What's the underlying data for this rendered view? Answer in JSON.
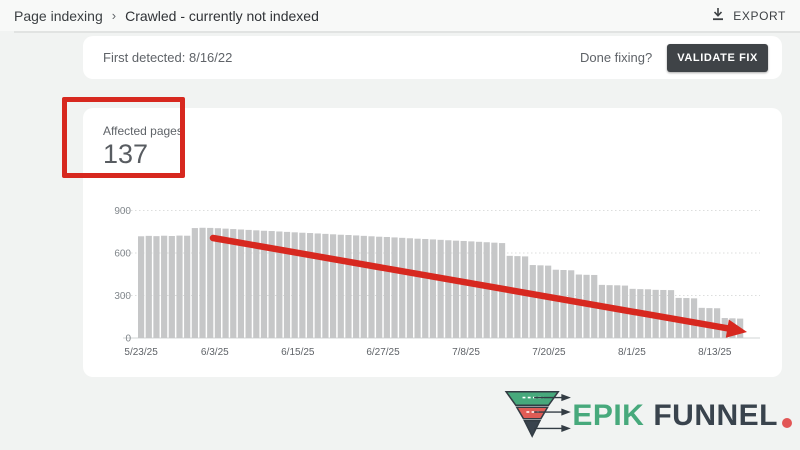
{
  "header": {
    "breadcrumb": [
      "Page indexing",
      "Crawled - currently not indexed"
    ],
    "separator": "›",
    "export_label": "EXPORT"
  },
  "detection_bar": {
    "first_detected": "First detected: 8/16/22",
    "done_fixing_label": "Done fixing?",
    "validate_button_label": "VALIDATE FIX"
  },
  "summary": {
    "affected_pages_label": "Affected pages",
    "affected_pages_count": "137"
  },
  "chart_data": {
    "type": "bar",
    "ylabel": "",
    "xlabel": "",
    "ylim": [
      0,
      900
    ],
    "yticks": [
      0,
      300,
      600,
      900
    ],
    "grid": "dotted-horizontal",
    "legend": "none",
    "bar_color": "#c6c7c8",
    "x_tick_labels": [
      "5/23/25",
      "6/3/25",
      "6/15/25",
      "6/27/25",
      "7/8/25",
      "7/20/25",
      "8/1/25",
      "8/13/25"
    ],
    "x_tick_bar_indices": [
      0,
      9.6,
      20.4,
      31.5,
      42.3,
      53.1,
      63.9,
      74.7
    ],
    "values": [
      718,
      721,
      719,
      722,
      720,
      723,
      722,
      776,
      778,
      777,
      775,
      772,
      769,
      766,
      763,
      760,
      757,
      755,
      752,
      749,
      746,
      743,
      741,
      738,
      735,
      732,
      729,
      727,
      724,
      721,
      718,
      715,
      713,
      710,
      707,
      704,
      701,
      699,
      696,
      693,
      690,
      687,
      685,
      682,
      679,
      676,
      673,
      670,
      580,
      578,
      576,
      515,
      513,
      511,
      482,
      480,
      478,
      448,
      446,
      445,
      375,
      373,
      372,
      370,
      347,
      345,
      344,
      340,
      339,
      338,
      283,
      282,
      280,
      213,
      211,
      210,
      141,
      139,
      137
    ]
  },
  "annotations": {
    "highlight_box_color": "#d7281f",
    "arrow_color": "#d7281f",
    "arrow_meaning": "declining trend of affected pages"
  },
  "logo": {
    "brand_first": "EPIK",
    "brand_second": "FUNNEL",
    "period": ".",
    "green": "#47a97c",
    "dark": "#39434d",
    "red": "#e25555"
  },
  "colors": {
    "page_background": "#f1f3f2",
    "card_background": "#ffffff",
    "validate_button_background": "#3f4347",
    "text_secondary": "#5f6368"
  }
}
